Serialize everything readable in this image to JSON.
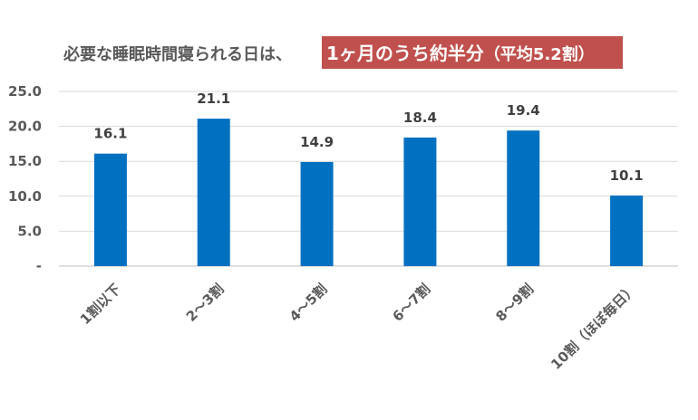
{
  "chart_data": {
    "type": "bar",
    "title_plain": "必要な睡眠時間寝られる日は、",
    "title_highlight_big": "1ヶ月のうち約半分",
    "title_highlight_small": "（平均5.2割）",
    "xlabel": "",
    "ylabel": "",
    "categories": [
      "1割以下",
      "2～3割",
      "4～5割",
      "6～7割",
      "8～9割",
      "10割（ほぼ毎日）"
    ],
    "values": [
      16.1,
      21.1,
      14.9,
      18.4,
      19.4,
      10.1
    ],
    "value_labels": [
      "16.1",
      "21.1",
      "14.9",
      "18.4",
      "19.4",
      "10.1"
    ],
    "ylim": [
      0,
      25
    ],
    "yticks": [
      0,
      5,
      10,
      15,
      20,
      25
    ],
    "ytick_labels": [
      "-",
      "5.0",
      "10.0",
      "15.0",
      "20.0",
      "25.0"
    ],
    "grid": true,
    "legend": "none",
    "colors": {
      "bar": "#0070c0",
      "highlight_bg": "#c0504d",
      "grid": "#d9d9d9",
      "axis": "#bfbfbf"
    }
  }
}
